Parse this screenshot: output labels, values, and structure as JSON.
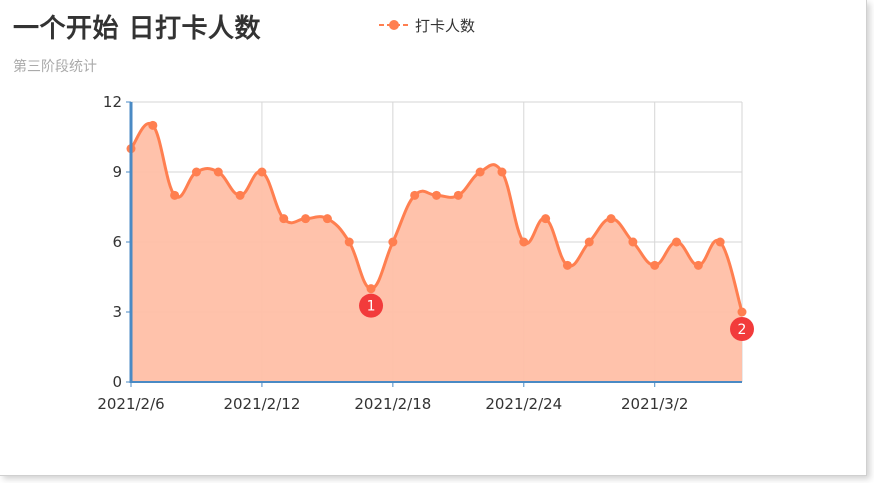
{
  "chart_data": {
    "type": "area",
    "title": "一个开始 日打卡人数",
    "subtitle": "第三阶段统计",
    "legend": {
      "position": "top",
      "entries": [
        "打卡人数"
      ]
    },
    "x_tick_labels": [
      "2021/2/6",
      "2021/2/12",
      "2021/2/18",
      "2021/2/24",
      "2021/3/2"
    ],
    "y_ticks": [
      0,
      3,
      6,
      9,
      12
    ],
    "ylim": [
      0,
      12
    ],
    "grid": true,
    "x": [
      "2021/2/6",
      "2021/2/7",
      "2021/2/8",
      "2021/2/9",
      "2021/2/10",
      "2021/2/11",
      "2021/2/12",
      "2021/2/13",
      "2021/2/14",
      "2021/2/15",
      "2021/2/16",
      "2021/2/17",
      "2021/2/18",
      "2021/2/19",
      "2021/2/20",
      "2021/2/21",
      "2021/2/22",
      "2021/2/23",
      "2021/2/24",
      "2021/2/25",
      "2021/2/26",
      "2021/2/27",
      "2021/2/28",
      "2021/3/1",
      "2021/3/2",
      "2021/3/3",
      "2021/3/4",
      "2021/3/5",
      "2021/3/6"
    ],
    "series": [
      {
        "name": "打卡人数",
        "color": "#ff7f50",
        "values": [
          10,
          11,
          8,
          9,
          9,
          8,
          9,
          7,
          7,
          7,
          6,
          4,
          6,
          8,
          8,
          8,
          9,
          9,
          6,
          7,
          5,
          6,
          7,
          6,
          5,
          6,
          5,
          6,
          3
        ]
      }
    ],
    "annotations": [
      {
        "label": "1",
        "x": "2021/2/17",
        "y": 4
      },
      {
        "label": "2",
        "x": "2021/3/6",
        "y": 3
      }
    ]
  },
  "colors": {
    "series": "#ff7f50",
    "area_fill": "#ffbfa6",
    "y_axis": "#4a8ac4",
    "badge": "#f23b3b"
  }
}
